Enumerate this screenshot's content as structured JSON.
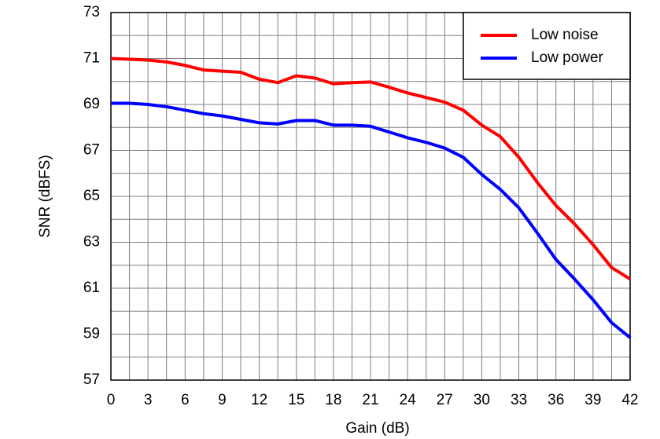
{
  "chart_data": {
    "type": "line",
    "x_label": "Gain (dB)",
    "y_label": "SNR (dBFS)",
    "x": [
      0,
      1.5,
      3,
      4.5,
      6,
      7.5,
      9,
      10.5,
      12,
      13.5,
      15,
      16.5,
      18,
      19.5,
      21,
      22.5,
      24,
      25.5,
      27,
      28.5,
      30,
      31.5,
      33,
      34.5,
      36,
      37.5,
      39,
      40.5,
      42
    ],
    "series": [
      {
        "name": "Low noise",
        "color": "#ff0000",
        "values": [
          71.0,
          70.97,
          70.93,
          70.85,
          70.7,
          70.5,
          70.45,
          70.4,
          70.1,
          69.95,
          70.25,
          70.15,
          69.9,
          69.95,
          69.98,
          69.75,
          69.5,
          69.3,
          69.1,
          68.75,
          68.1,
          67.6,
          66.7,
          65.6,
          64.6,
          63.8,
          62.9,
          61.9,
          61.4
        ]
      },
      {
        "name": "Low power",
        "color": "#0000ff",
        "values": [
          69.05,
          69.05,
          69.0,
          68.9,
          68.75,
          68.6,
          68.5,
          68.35,
          68.2,
          68.15,
          68.3,
          68.3,
          68.1,
          68.1,
          68.05,
          67.8,
          67.55,
          67.35,
          67.1,
          66.7,
          65.95,
          65.3,
          64.5,
          63.4,
          62.25,
          61.4,
          60.5,
          59.5,
          58.85
        ]
      }
    ],
    "xlim": [
      0,
      42
    ],
    "ylim": [
      57,
      73
    ],
    "xticks": [
      0,
      3,
      6,
      9,
      12,
      15,
      18,
      21,
      24,
      27,
      30,
      33,
      36,
      39,
      42
    ],
    "yticks": [
      57,
      59,
      61,
      63,
      65,
      67,
      69,
      71,
      73
    ],
    "minor_xticks": [
      1.5,
      4.5,
      7.5,
      10.5,
      13.5,
      16.5,
      19.5,
      22.5,
      25.5,
      28.5,
      31.5,
      34.5,
      37.5,
      40.5
    ],
    "minor_yticks": [
      58,
      60,
      62,
      64,
      66,
      68,
      70,
      72
    ],
    "grid": true,
    "legend": "upper right"
  }
}
